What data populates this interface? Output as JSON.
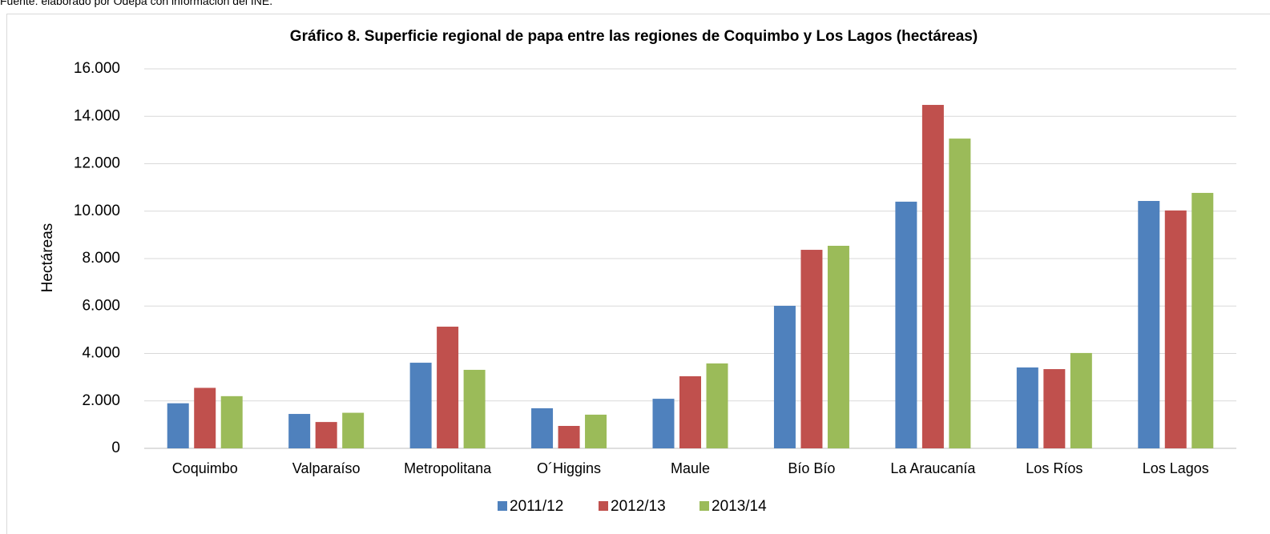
{
  "source": "Fuente: elaborado por Odepa con información del INE.",
  "chart_data": {
    "type": "bar",
    "title": "Gráfico 8. Superficie regional de papa entre las regiones de Coquimbo y Los Lagos (hectáreas)",
    "y_label": "Hectáreas",
    "categories": [
      "Coquimbo",
      "Valparaíso",
      "Metropolitana",
      "O´Higgins",
      "Maule",
      "Bío Bío",
      "La Araucanía",
      "Los Ríos",
      "Los Lagos"
    ],
    "series": [
      {
        "name": "2011/12",
        "color": "#4f81bd",
        "values": [
          1900,
          1450,
          3610,
          1690,
          2090,
          6010,
          10400,
          3410,
          10430
        ]
      },
      {
        "name": "2012/13",
        "color": "#c0504d",
        "values": [
          2550,
          1110,
          5130,
          945,
          3040,
          8370,
          14480,
          3340,
          10030
        ]
      },
      {
        "name": "2013/14",
        "color": "#9bbb59",
        "values": [
          2200,
          1500,
          3310,
          1420,
          3580,
          8540,
          13060,
          4020,
          10770
        ]
      }
    ],
    "ylim": [
      0,
      16000
    ],
    "yticks": [
      0,
      {
        "value": 2000,
        "label": "2.000"
      },
      {
        "value": 4000,
        "label": "4.000"
      },
      {
        "value": 6000,
        "label": "6.000"
      },
      {
        "value": 8000,
        "label": "8.000"
      },
      {
        "value": 10000,
        "label": "10.000"
      },
      {
        "value": 12000,
        "label": "12.000"
      },
      {
        "value": 14000,
        "label": "14.000"
      },
      {
        "value": 16000,
        "label": "16.000"
      }
    ],
    "grid": true,
    "legend": "bottom"
  }
}
